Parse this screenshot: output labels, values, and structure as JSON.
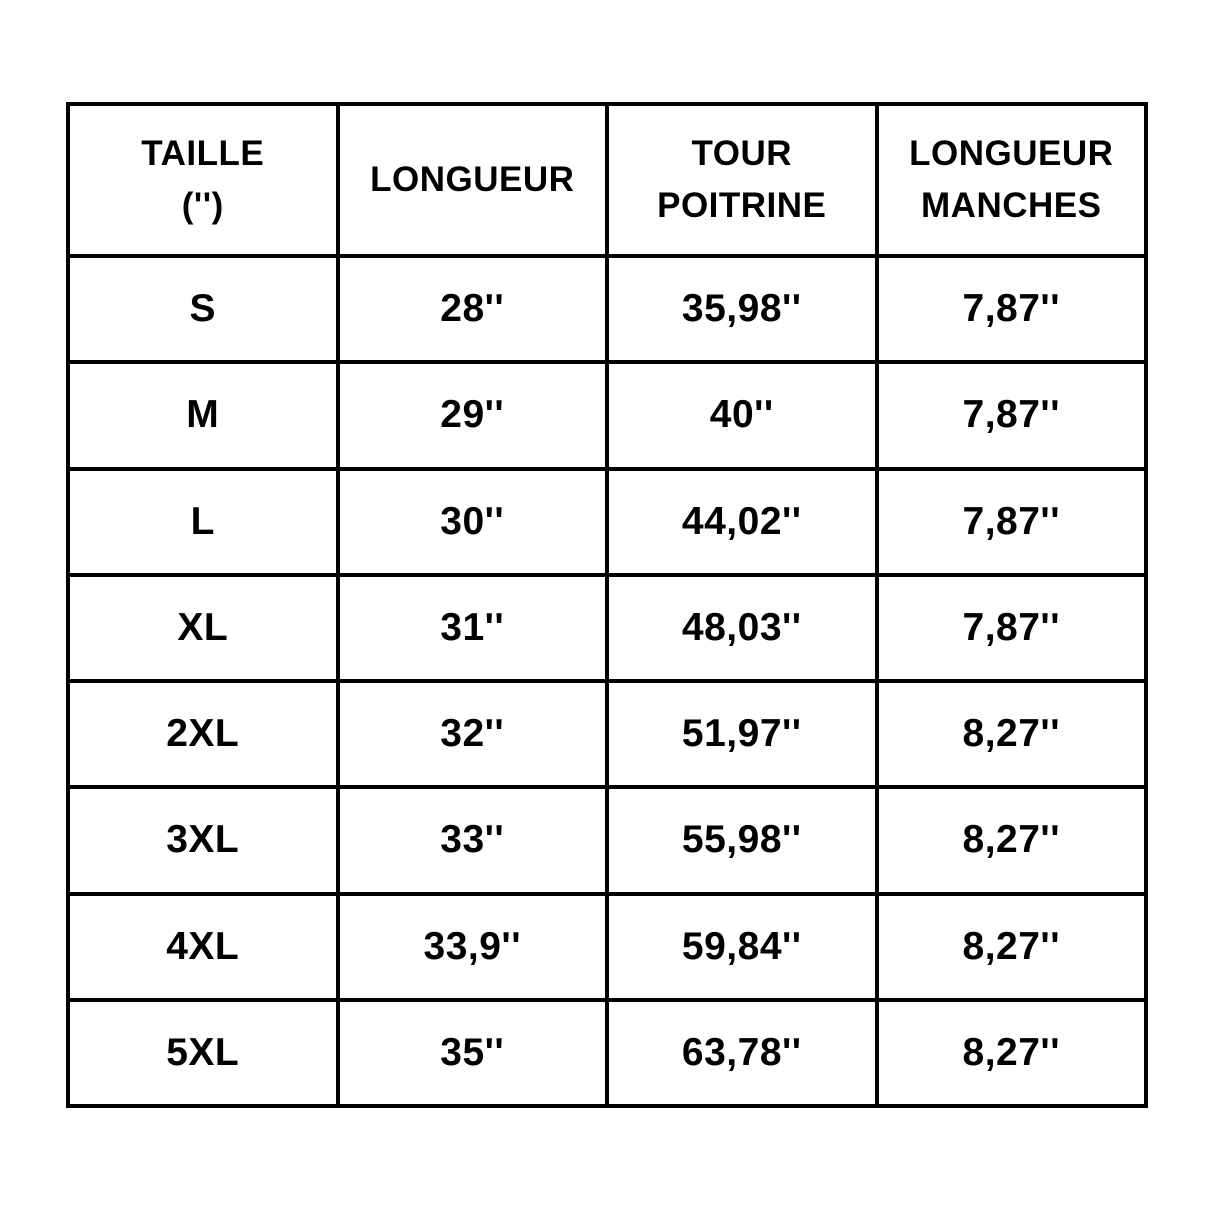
{
  "colors": {
    "background": "#ffffff",
    "border": "#000000",
    "text": "#000000"
  },
  "table": {
    "headers": {
      "size": "TAILLE\n('')",
      "length": "LONGUEUR",
      "chest": "TOUR\nPOITRINE",
      "sleeve": "LONGUEUR\nMANCHES"
    },
    "rows": [
      [
        "S",
        "28''",
        "35,98''",
        "7,87''"
      ],
      [
        "M",
        "29''",
        "40''",
        "7,87''"
      ],
      [
        "L",
        "30''",
        "44,02''",
        "7,87''"
      ],
      [
        "XL",
        "31''",
        "48,03''",
        "7,87''"
      ],
      [
        "2XL",
        "32''",
        "51,97''",
        "8,27''"
      ],
      [
        "3XL",
        "33''",
        "55,98''",
        "8,27''"
      ],
      [
        "4XL",
        "33,9''",
        "59,84''",
        "8,27''"
      ],
      [
        "5XL",
        "35''",
        "63,78''",
        "8,27''"
      ]
    ]
  }
}
